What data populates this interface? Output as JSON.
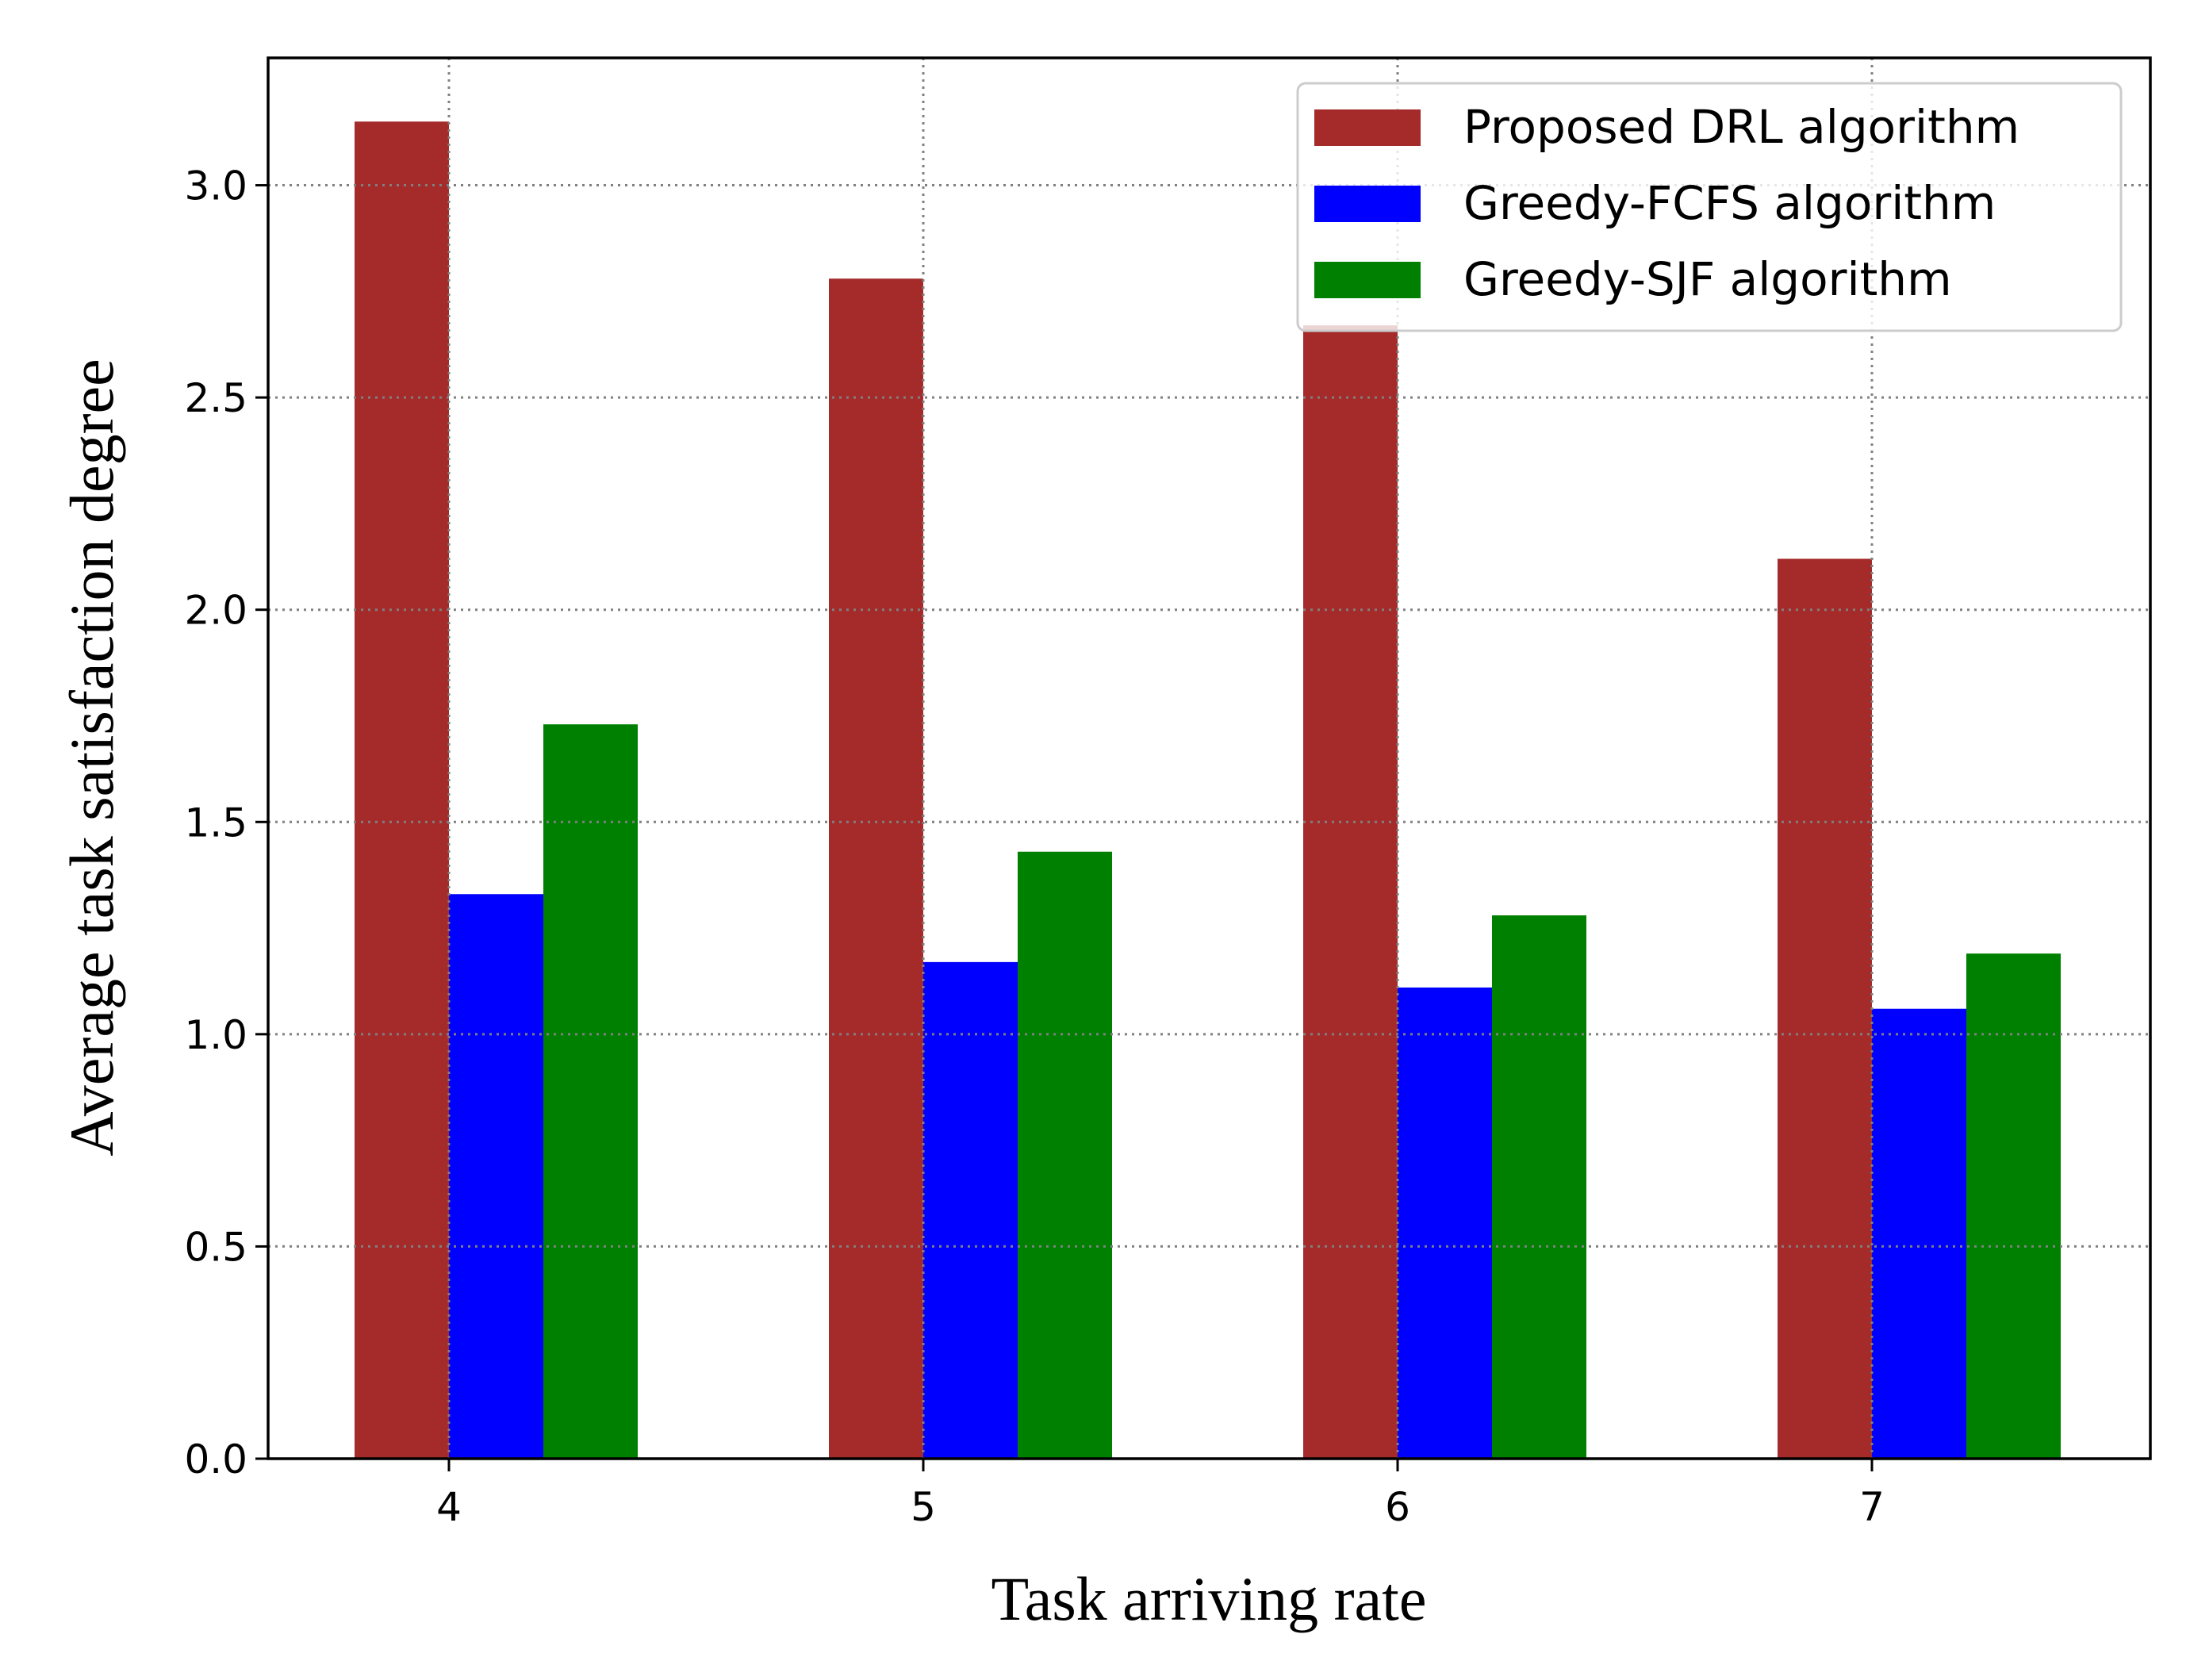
{
  "chart_data": {
    "type": "bar",
    "categories": [
      "4",
      "5",
      "6",
      "7"
    ],
    "series": [
      {
        "name": "Proposed DRL algorithm",
        "color": "#a52a2a",
        "values": [
          3.15,
          2.78,
          2.67,
          2.12
        ]
      },
      {
        "name": "Greedy-FCFS algorithm",
        "color": "#0000ff",
        "values": [
          1.33,
          1.17,
          1.11,
          1.06
        ]
      },
      {
        "name": "Greedy-SJF algorithm",
        "color": "#008000",
        "values": [
          1.73,
          1.43,
          1.28,
          1.19
        ]
      }
    ],
    "xlabel": "Task arriving rate",
    "ylabel": "Average task satisfaction degree",
    "ylim": [
      0,
      3.3
    ],
    "yticks": [
      {
        "value": 0.0,
        "label": "0.0"
      },
      {
        "value": 0.5,
        "label": "0.5"
      },
      {
        "value": 1.0,
        "label": "1.0"
      },
      {
        "value": 1.5,
        "label": "1.5"
      },
      {
        "value": 2.0,
        "label": "2.0"
      },
      {
        "value": 2.5,
        "label": "2.5"
      },
      {
        "value": 3.0,
        "label": "3.0"
      }
    ],
    "grid": true,
    "legend_position": "top-right"
  }
}
